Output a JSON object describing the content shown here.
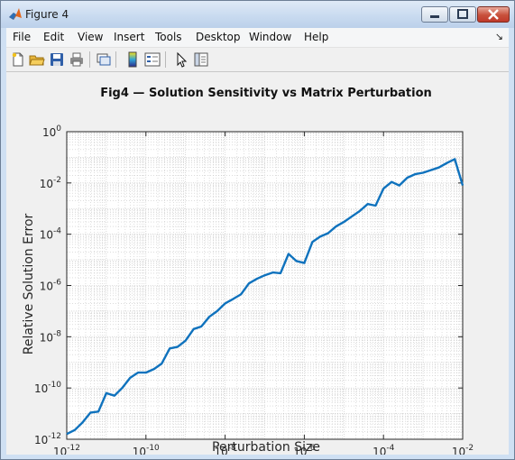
{
  "window": {
    "title": "Figure 4"
  },
  "menu": {
    "items": [
      "File",
      "Edit",
      "View",
      "Insert",
      "Tools",
      "Desktop",
      "Window",
      "Help"
    ]
  },
  "toolbar": {
    "icons": [
      "new-figure-icon",
      "open-file-icon",
      "save-icon",
      "print-icon",
      "link-plot-icon",
      "insert-colorbar-icon",
      "insert-legend-icon",
      "edit-plot-arrow-icon",
      "property-inspector-icon"
    ]
  },
  "colors": {
    "line": "#0f72bd",
    "grid": "#c8c8c8",
    "axes": "#262626"
  },
  "chart_data": {
    "type": "line",
    "title": "Fig4 — Solution Sensitivity vs Matrix Perturbation",
    "xlabel": "Perturbation Size",
    "ylabel": "Relative Solution Error",
    "xscale": "log",
    "yscale": "log",
    "xlim": [
      1e-12,
      0.01
    ],
    "ylim": [
      1e-12,
      1
    ],
    "xticks": [
      {
        "base": "10",
        "exp": "-12"
      },
      {
        "base": "10",
        "exp": "-10"
      },
      {
        "base": "10",
        "exp": "-8"
      },
      {
        "base": "10",
        "exp": "-6"
      },
      {
        "base": "10",
        "exp": "-4"
      },
      {
        "base": "10",
        "exp": "-2"
      }
    ],
    "yticks": [
      {
        "base": "10",
        "exp": "-12"
      },
      {
        "base": "10",
        "exp": "-10"
      },
      {
        "base": "10",
        "exp": "-8"
      },
      {
        "base": "10",
        "exp": "-6"
      },
      {
        "base": "10",
        "exp": "-4"
      },
      {
        "base": "10",
        "exp": "-2"
      },
      {
        "base": "10",
        "exp": "0"
      }
    ],
    "grid": "major and minor",
    "series": [
      {
        "x": [
          1e-12,
          1.6e-12,
          2.5e-12,
          4e-12,
          6.3e-12,
          1e-11,
          1.6e-11,
          2.5e-11,
          4e-11,
          6.3e-11,
          1e-10,
          1.6e-10,
          2.5e-10,
          4e-10,
          6.3e-10,
          1e-09,
          1.6e-09,
          2.5e-09,
          4e-09,
          6.3e-09,
          1e-08,
          1.6e-08,
          2.5e-08,
          4e-08,
          6.3e-08,
          1e-07,
          1.6e-07,
          2.5e-07,
          4e-07,
          6.3e-07,
          1e-06,
          1.6e-06,
          2.5e-06,
          4e-06,
          6.3e-06,
          1e-05,
          1.6e-05,
          2.5e-05,
          4e-05,
          6.3e-05,
          0.0001,
          0.00016,
          0.00025,
          0.0004,
          0.00063,
          0.001,
          0.0016,
          0.0025,
          0.004,
          0.0063,
          0.01
        ],
        "y": [
          1.6e-12,
          2.3e-12,
          4.5e-12,
          1.1e-11,
          1.2e-11,
          6.3e-11,
          5e-11,
          1e-10,
          2.5e-10,
          4e-10,
          4e-10,
          5.5e-10,
          9e-10,
          3.5e-09,
          4e-09,
          7e-09,
          2e-08,
          2.5e-08,
          6e-08,
          1e-07,
          2e-07,
          3e-07,
          4.5e-07,
          1.2e-06,
          1.8e-06,
          2.5e-06,
          3.2e-06,
          3e-06,
          1.7e-05,
          9e-06,
          7.5e-06,
          5e-05,
          8e-05,
          0.00011,
          0.0002,
          0.0003,
          0.0005,
          0.0008,
          0.0015,
          0.0013,
          0.006,
          0.011,
          0.008,
          0.016,
          0.022,
          0.025,
          0.032,
          0.04,
          0.06,
          0.085,
          0.008
        ]
      }
    ]
  }
}
